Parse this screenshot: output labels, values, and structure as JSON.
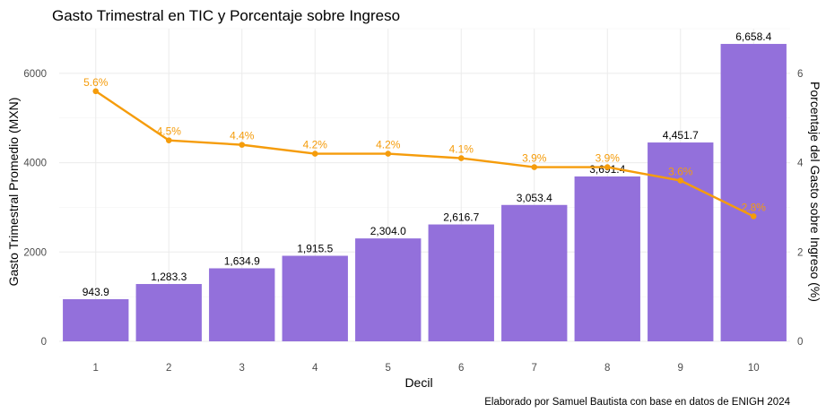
{
  "chart_data": {
    "type": "bar",
    "title": "Gasto Trimestral en TIC y Porcentaje sobre Ingreso",
    "xlabel": "Decil",
    "ylabel": "Gasto Trimestral Promedio (MXN)",
    "y2label": "Porcentaje del Gasto sobre Ingreso (%)",
    "caption": "Elaborado por Samuel Bautista con base en datos de ENIGH 2024",
    "categories": [
      "1",
      "2",
      "3",
      "4",
      "5",
      "6",
      "7",
      "8",
      "9",
      "10"
    ],
    "ylim": [
      0,
      7000
    ],
    "yticks": [
      0,
      2000,
      4000,
      6000
    ],
    "y2lim": [
      0,
      7
    ],
    "y2ticks": [
      0,
      2,
      4,
      6
    ],
    "grid": true,
    "legend": "none",
    "series": [
      {
        "name": "Gasto Trimestral Promedio (MXN)",
        "kind": "bar",
        "color": "#9370DB",
        "values": [
          943.9,
          1283.3,
          1634.9,
          1915.5,
          2304.0,
          2616.7,
          3053.4,
          3691.4,
          4451.7,
          6658.4
        ],
        "labels": [
          "943.9",
          "1,283.3",
          "1,634.9",
          "1,915.5",
          "2,304.0",
          "2,616.7",
          "3,053.4",
          "3,691.4",
          "4,451.7",
          "6,658.4"
        ]
      },
      {
        "name": "Porcentaje del Gasto sobre Ingreso (%)",
        "kind": "line",
        "axis": "right",
        "color": "#F59C0B",
        "values": [
          5.6,
          4.5,
          4.4,
          4.2,
          4.2,
          4.1,
          3.9,
          3.9,
          3.6,
          2.8
        ],
        "labels": [
          "5.6%",
          "4.5%",
          "4.4%",
          "4.2%",
          "4.2%",
          "4.1%",
          "3.9%",
          "3.9%",
          "3.6%",
          "2.8%"
        ]
      }
    ]
  }
}
